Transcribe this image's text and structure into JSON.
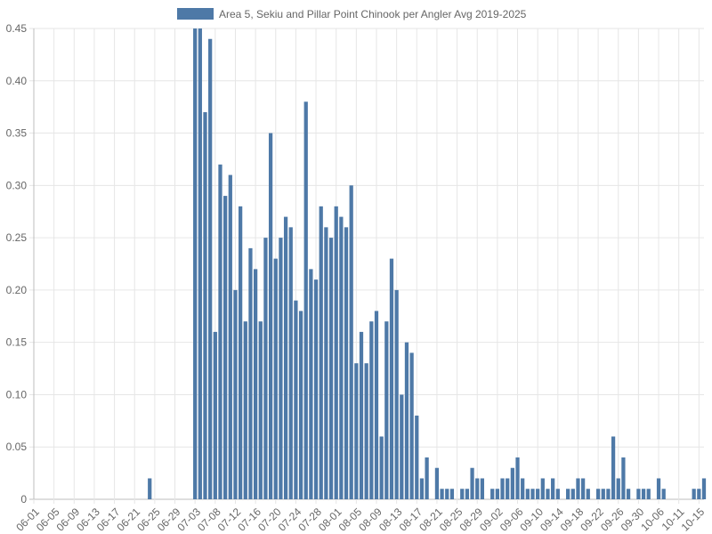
{
  "chart_data": {
    "type": "bar",
    "legend": {
      "position": "top",
      "entries": [
        {
          "label": "Area 5, Sekiu and Pillar Point Chinook per Angler Avg 2019-2025",
          "color": "#4e79a7"
        }
      ]
    },
    "xlabel": "",
    "ylabel": "",
    "ylim": [
      0,
      0.45
    ],
    "y_ticks": [
      "0",
      "0.05",
      "0.10",
      "0.15",
      "0.20",
      "0.25",
      "0.30",
      "0.35",
      "0.40",
      "0.45"
    ],
    "x_tick_labels": [
      "06-01",
      "06-05",
      "06-09",
      "06-13",
      "06-17",
      "06-21",
      "06-25",
      "06-29",
      "07-03",
      "07-08",
      "07-12",
      "07-16",
      "07-20",
      "07-24",
      "07-28",
      "08-01",
      "08-05",
      "08-09",
      "08-13",
      "08-17",
      "08-21",
      "08-25",
      "08-29",
      "09-02",
      "09-06",
      "09-10",
      "09-14",
      "09-18",
      "09-22",
      "09-26",
      "09-30",
      "10-06",
      "10-11",
      "10-15"
    ],
    "grid": true,
    "series": [
      {
        "name": "Area 5, Sekiu and Pillar Point Chinook per Angler Avg 2019-2025",
        "color": "#4e79a7",
        "values": [
          0,
          0,
          0,
          0,
          0,
          0,
          0,
          0,
          0,
          0,
          0,
          0,
          0,
          0,
          0,
          0,
          0,
          0,
          0,
          0,
          0,
          0,
          0,
          0.02,
          0,
          0,
          0,
          0,
          0,
          0,
          0,
          0,
          0.45,
          0.45,
          0.37,
          0.44,
          0.16,
          0.32,
          0.29,
          0.31,
          0.2,
          0.28,
          0.17,
          0.24,
          0.22,
          0.17,
          0.25,
          0.35,
          0.23,
          0.25,
          0.27,
          0.26,
          0.19,
          0.18,
          0.38,
          0.22,
          0.21,
          0.28,
          0.26,
          0.25,
          0.28,
          0.27,
          0.26,
          0.3,
          0.13,
          0.16,
          0.13,
          0.17,
          0.18,
          0.06,
          0.17,
          0.23,
          0.2,
          0.1,
          0.15,
          0.14,
          0.08,
          0.02,
          0.04,
          0,
          0.03,
          0.01,
          0.01,
          0.01,
          0,
          0.01,
          0.01,
          0.03,
          0.02,
          0.02,
          0,
          0.01,
          0.01,
          0.02,
          0.02,
          0.03,
          0.04,
          0.02,
          0.01,
          0.01,
          0.01,
          0.02,
          0.01,
          0.02,
          0.01,
          0,
          0.01,
          0.01,
          0.02,
          0.02,
          0.01,
          0,
          0.01,
          0.01,
          0.01,
          0.06,
          0.02,
          0.04,
          0.01,
          0,
          0.01,
          0.01,
          0.01,
          0,
          0.02,
          0.01,
          0,
          0,
          0,
          0,
          0,
          0.01,
          0.01,
          0.02
        ]
      }
    ]
  }
}
